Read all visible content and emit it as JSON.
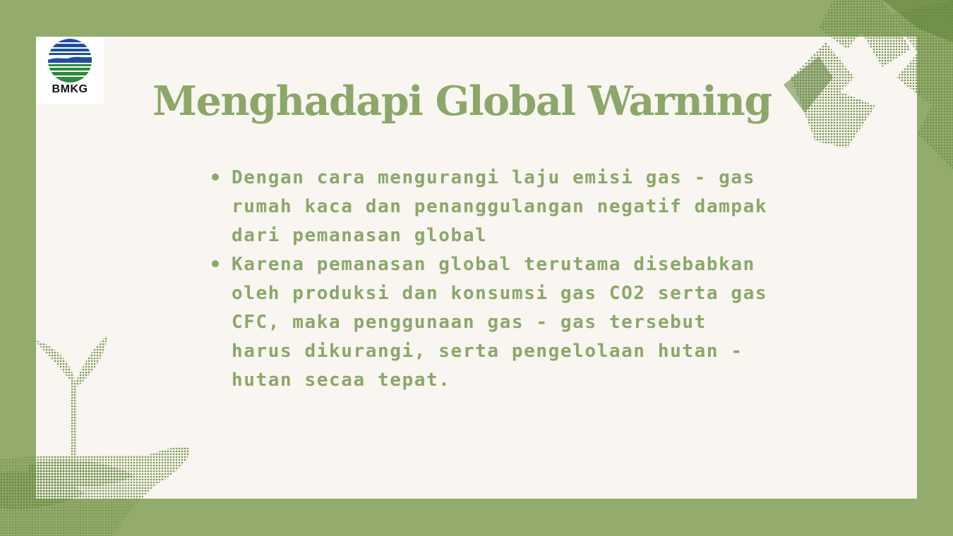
{
  "logo": {
    "label": "BMKG"
  },
  "slide": {
    "title": "Menghadapi Global Warning",
    "bullets": [
      {
        "text": "Dengan cara mengurangi laju emisi gas - gas rumah kaca dan penanggulangan negatif dampak dari pemanasan global"
      },
      {
        "text": "Karena pemanasan global terutama disebabkan oleh produksi dan konsumsi gas CO2 serta gas CFC, maka penggunaan gas - gas tersebut harus dikurangi, serta pengelolaan hutan -hutan secaa tepat."
      }
    ]
  },
  "decorations": {
    "top_right": "recycle-icon",
    "bottom_left": "seedling-in-hand-icon"
  },
  "colors": {
    "frame": "#93ab6c",
    "card": "#f9f5f0",
    "text": "#8ba76a",
    "logo_blue": "#1d4f9e",
    "logo_green": "#2e8b3a"
  }
}
